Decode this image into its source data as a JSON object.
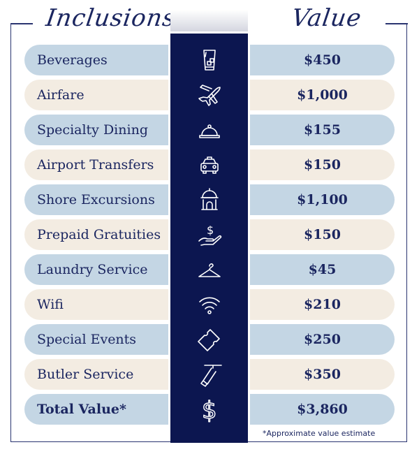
{
  "header": {
    "inclusions": "Inclusions",
    "value": "Value"
  },
  "rows": [
    {
      "label": "Beverages",
      "value": "$450",
      "icon": "glass-ice-icon"
    },
    {
      "label": "Airfare",
      "value": "$1,000",
      "icon": "airplane-icon"
    },
    {
      "label": "Specialty Dining",
      "value": "$155",
      "icon": "cloche-icon"
    },
    {
      "label": "Airport Transfers",
      "value": "$150",
      "icon": "taxi-icon"
    },
    {
      "label": "Shore Excursions",
      "value": "$1,100",
      "icon": "landmark-icon"
    },
    {
      "label": "Prepaid Gratuities",
      "value": "$150",
      "icon": "hand-dollar-icon"
    },
    {
      "label": "Laundry Service",
      "value": "$45",
      "icon": "hanger-icon"
    },
    {
      "label": "Wifi",
      "value": "$210",
      "icon": "wifi-icon"
    },
    {
      "label": "Special Events",
      "value": "$250",
      "icon": "ticket-icon"
    },
    {
      "label": "Butler Service",
      "value": "$350",
      "icon": "butler-tray-icon"
    }
  ],
  "total": {
    "label": "Total Value*",
    "value": "$3,860",
    "icon": "dollar-icon"
  },
  "footnote": "*Approximate value estimate",
  "colors": {
    "navy": "#0c1650",
    "blue": "#c4d6e4",
    "beige": "#f3ece2",
    "text": "#1b2660"
  }
}
